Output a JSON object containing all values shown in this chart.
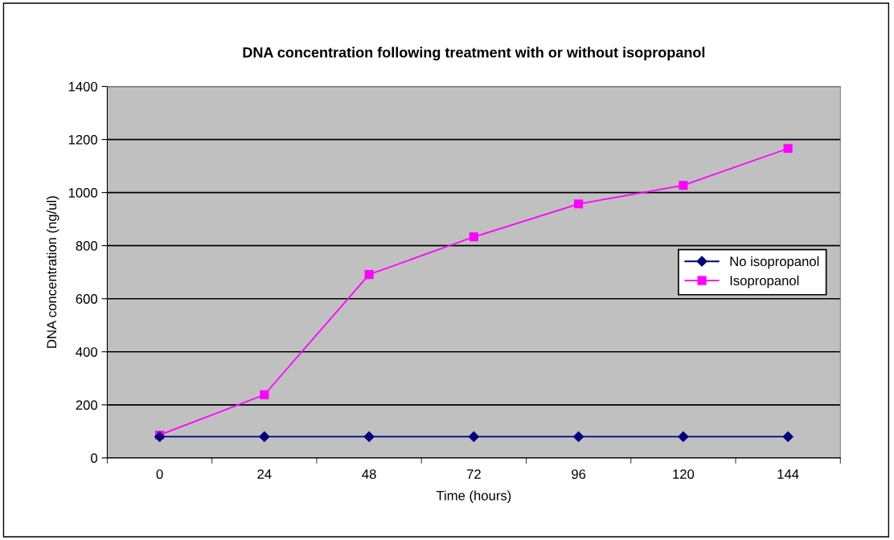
{
  "chart_data": {
    "type": "line",
    "title": "DNA concentration following treatment with or without isopropanol",
    "xlabel": "Time (hours)",
    "ylabel": "DNA concentration (ng/ul)",
    "categories": [
      "0",
      "24",
      "48",
      "72",
      "96",
      "120",
      "144"
    ],
    "series": [
      {
        "name": "No isopropanol",
        "color": "#000080",
        "marker": "diamond",
        "values": [
          80,
          80,
          80,
          80,
          80,
          80,
          80
        ]
      },
      {
        "name": "Isopropanol",
        "color": "#ff00ff",
        "marker": "square",
        "values": [
          86,
          238,
          691,
          833,
          957,
          1027,
          1166
        ]
      }
    ],
    "ylim": [
      0,
      1400
    ],
    "yticks": [
      0,
      200,
      400,
      600,
      800,
      1000,
      1200,
      1400
    ],
    "grid": "y",
    "legend": "right"
  }
}
